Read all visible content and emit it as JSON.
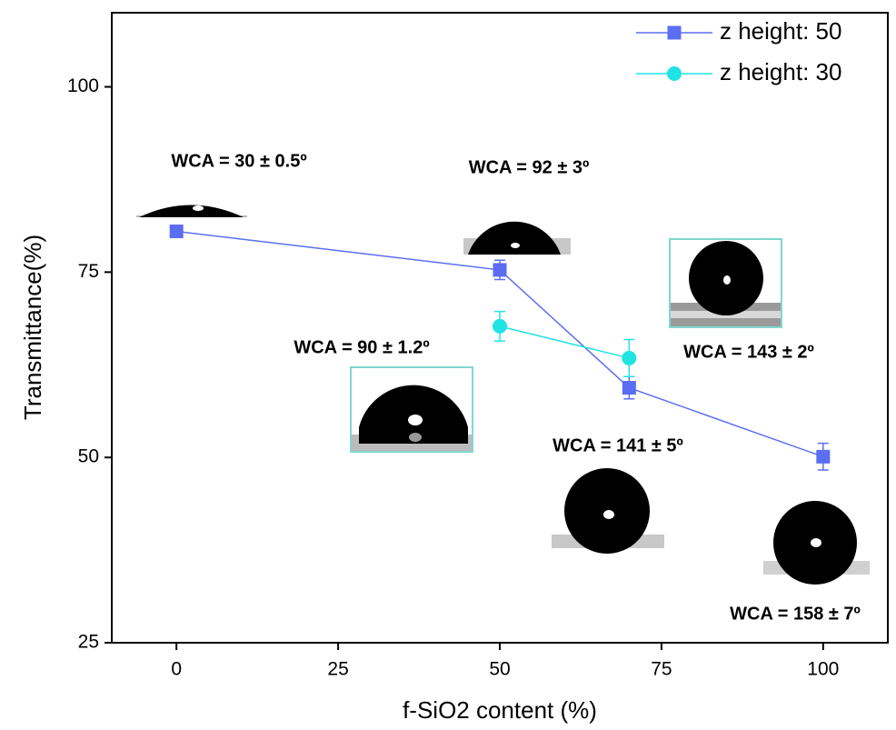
{
  "chart_data": {
    "type": "line",
    "xlabel": "f-SiO2 content (%)",
    "ylabel": "Transmittance(%)",
    "xlim": [
      -10,
      110
    ],
    "xticks": [
      0,
      25,
      50,
      75,
      100
    ],
    "ylim": [
      25,
      110
    ],
    "yticks": [
      25,
      50,
      75,
      100
    ],
    "legend": "upper right",
    "series": [
      {
        "name": "z height: 50",
        "color": "#5b6ef2",
        "marker": "square",
        "x": [
          0,
          50,
          70,
          100
        ],
        "values": [
          80.5,
          75.3,
          59.4,
          50.1
        ],
        "errors": [
          0.7,
          1.3,
          1.5,
          1.8
        ]
      },
      {
        "name": "z height: 30",
        "color": "#22e3e3",
        "marker": "circle",
        "x": [
          50,
          70
        ],
        "values": [
          67.7,
          63.4
        ],
        "errors": [
          2.0,
          2.5
        ]
      }
    ],
    "annotations": [
      "WCA = 30 ± 0.5º",
      "WCA = 92 ± 3º",
      "WCA = 90 ± 1.2º",
      "WCA = 143 ± 2º",
      "WCA = 141 ± 5º",
      "WCA = 158 ± 7º"
    ]
  }
}
